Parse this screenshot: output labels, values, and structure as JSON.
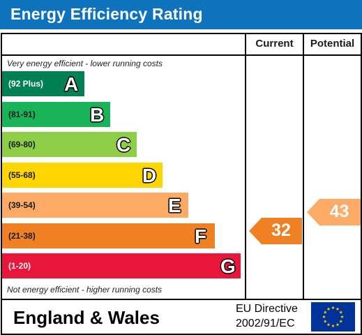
{
  "title": "Energy Efficiency Rating",
  "columns": {
    "current": "Current",
    "potential": "Potential"
  },
  "top_note": "Very energy efficient - lower running costs",
  "bottom_note": "Not energy efficient - higher running costs",
  "bands": [
    {
      "letter": "A",
      "range": "(92 Plus)",
      "color": "#008054"
    },
    {
      "letter": "B",
      "range": "(81-91)",
      "color": "#19b459"
    },
    {
      "letter": "C",
      "range": "(69-80)",
      "color": "#8dce46"
    },
    {
      "letter": "D",
      "range": "(55-68)",
      "color": "#ffd500"
    },
    {
      "letter": "E",
      "range": "(39-54)",
      "color": "#fcaa65"
    },
    {
      "letter": "F",
      "range": "(21-38)",
      "color": "#ef8023"
    },
    {
      "letter": "G",
      "range": "(1-20)",
      "color": "#e9153b"
    }
  ],
  "current": {
    "value": "32",
    "band": "F",
    "color": "#ef8023"
  },
  "potential": {
    "value": "43",
    "band": "E",
    "color": "#fcaa65"
  },
  "footer": {
    "region": "England & Wales",
    "directive_line1": "EU Directive",
    "directive_line2": "2002/91/EC"
  },
  "icons": {
    "flag": "eu-flag-icon"
  }
}
